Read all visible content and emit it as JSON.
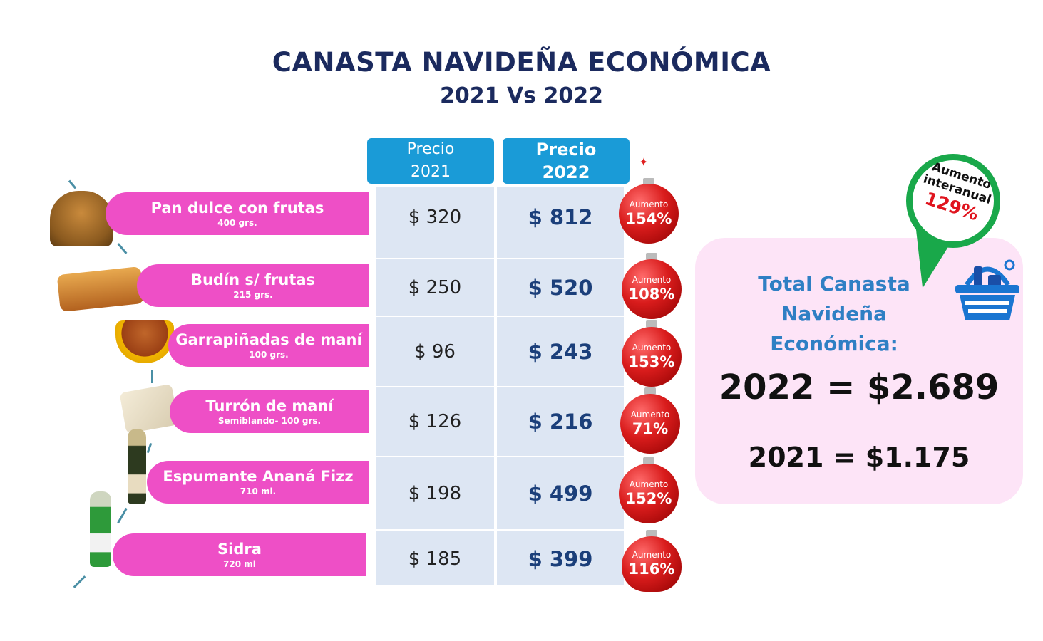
{
  "title": "CANASTA NAVIDEÑA ECONÓMICA",
  "subtitle": "2021 Vs 2022",
  "headers": {
    "p2021_line1": "Precio",
    "p2021_line2": "2021",
    "p2022_line1": "Precio",
    "p2022_line2": "2022"
  },
  "items": [
    {
      "name": "Pan dulce con frutas",
      "size": "400 grs.",
      "price_2021": "$ 320",
      "price_2022": "$ 812",
      "increase_label": "Aumento",
      "increase": "154%",
      "icon": "pan-dulce-icon"
    },
    {
      "name": "Budín s/ frutas",
      "size": "215 grs.",
      "price_2021": "$ 250",
      "price_2022": "$ 520",
      "increase_label": "Aumento",
      "increase": "108%",
      "icon": "budin-icon"
    },
    {
      "name": "Garrapiñadas de maní",
      "size": "100 grs.",
      "price_2021": "$ 96",
      "price_2022": "$ 243",
      "increase_label": "Aumento",
      "increase": "153%",
      "icon": "garrapinadas-icon"
    },
    {
      "name": "Turrón de maní",
      "size": "Semiblando- 100 grs.",
      "price_2021": "$ 126",
      "price_2022": "$ 216",
      "increase_label": "Aumento",
      "increase": "71%",
      "icon": "turron-icon"
    },
    {
      "name": "Espumante Ananá Fizz",
      "size": "710 ml.",
      "price_2021": "$ 198",
      "price_2022": "$ 499",
      "increase_label": "Aumento",
      "increase": "152%",
      "icon": "espumante-bottle-icon"
    },
    {
      "name": "Sidra",
      "size": "720 ml",
      "price_2021": "$ 185",
      "price_2022": "$ 399",
      "increase_label": "Aumento",
      "increase": "116%",
      "icon": "sidra-bottle-icon"
    }
  ],
  "total_panel": {
    "title_line1": "Total Canasta",
    "title_line2": "Navideña Económica:",
    "total_2022": "2022 = $2.689",
    "total_2021": "2021 = $1.175",
    "icon": "basket-icon"
  },
  "badge": {
    "line1": "Aumento",
    "line2": "interanual",
    "value": "129%"
  },
  "colors": {
    "title": "#1b2a5e",
    "header_blue": "#1a9bd7",
    "pill_pink": "#ee4fc6",
    "price_2022": "#1b3f7a",
    "ornament_red": "#d91c1c",
    "panel_bg": "#fde4f7",
    "panel_title": "#2f7fc4",
    "badge_green": "#19a84a",
    "badge_value_red": "#e0141e"
  }
}
